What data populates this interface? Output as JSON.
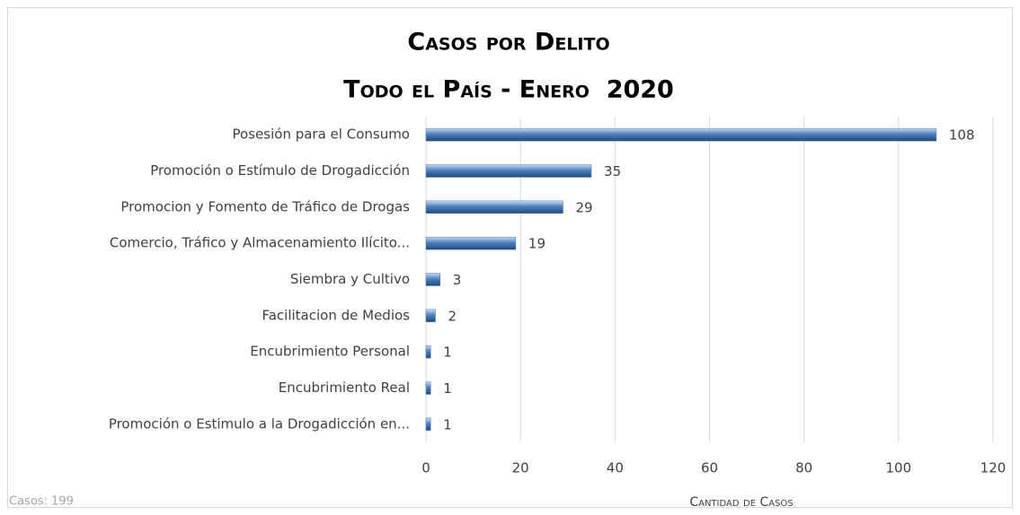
{
  "chart_data": {
    "type": "bar",
    "orientation": "horizontal",
    "title": "Casos por Delito",
    "subtitle": "Todo el País - Enero  2020",
    "categories": [
      "Posesión para el Consumo",
      "Promoción o Estímulo de Drogadicción",
      "Promocion y Fomento de Tráfico de Drogas",
      "Comercio, Tráfico y Almacenamiento Ilícito...",
      "Siembra y Cultivo",
      "Facilitacion de Medios",
      "Encubrimiento Personal",
      "Encubrimiento Real",
      "Promoción o Estimulo a la Drogadicción en..."
    ],
    "values": [
      108,
      35,
      29,
      19,
      3,
      2,
      1,
      1,
      1
    ],
    "color": "#4f81bd",
    "xlim": [
      0,
      120
    ],
    "xticks": [
      0,
      20,
      40,
      60,
      80,
      100,
      120
    ],
    "grid": true,
    "xlabel": "Cantidad de Casos",
    "note": "Casos: 199"
  }
}
